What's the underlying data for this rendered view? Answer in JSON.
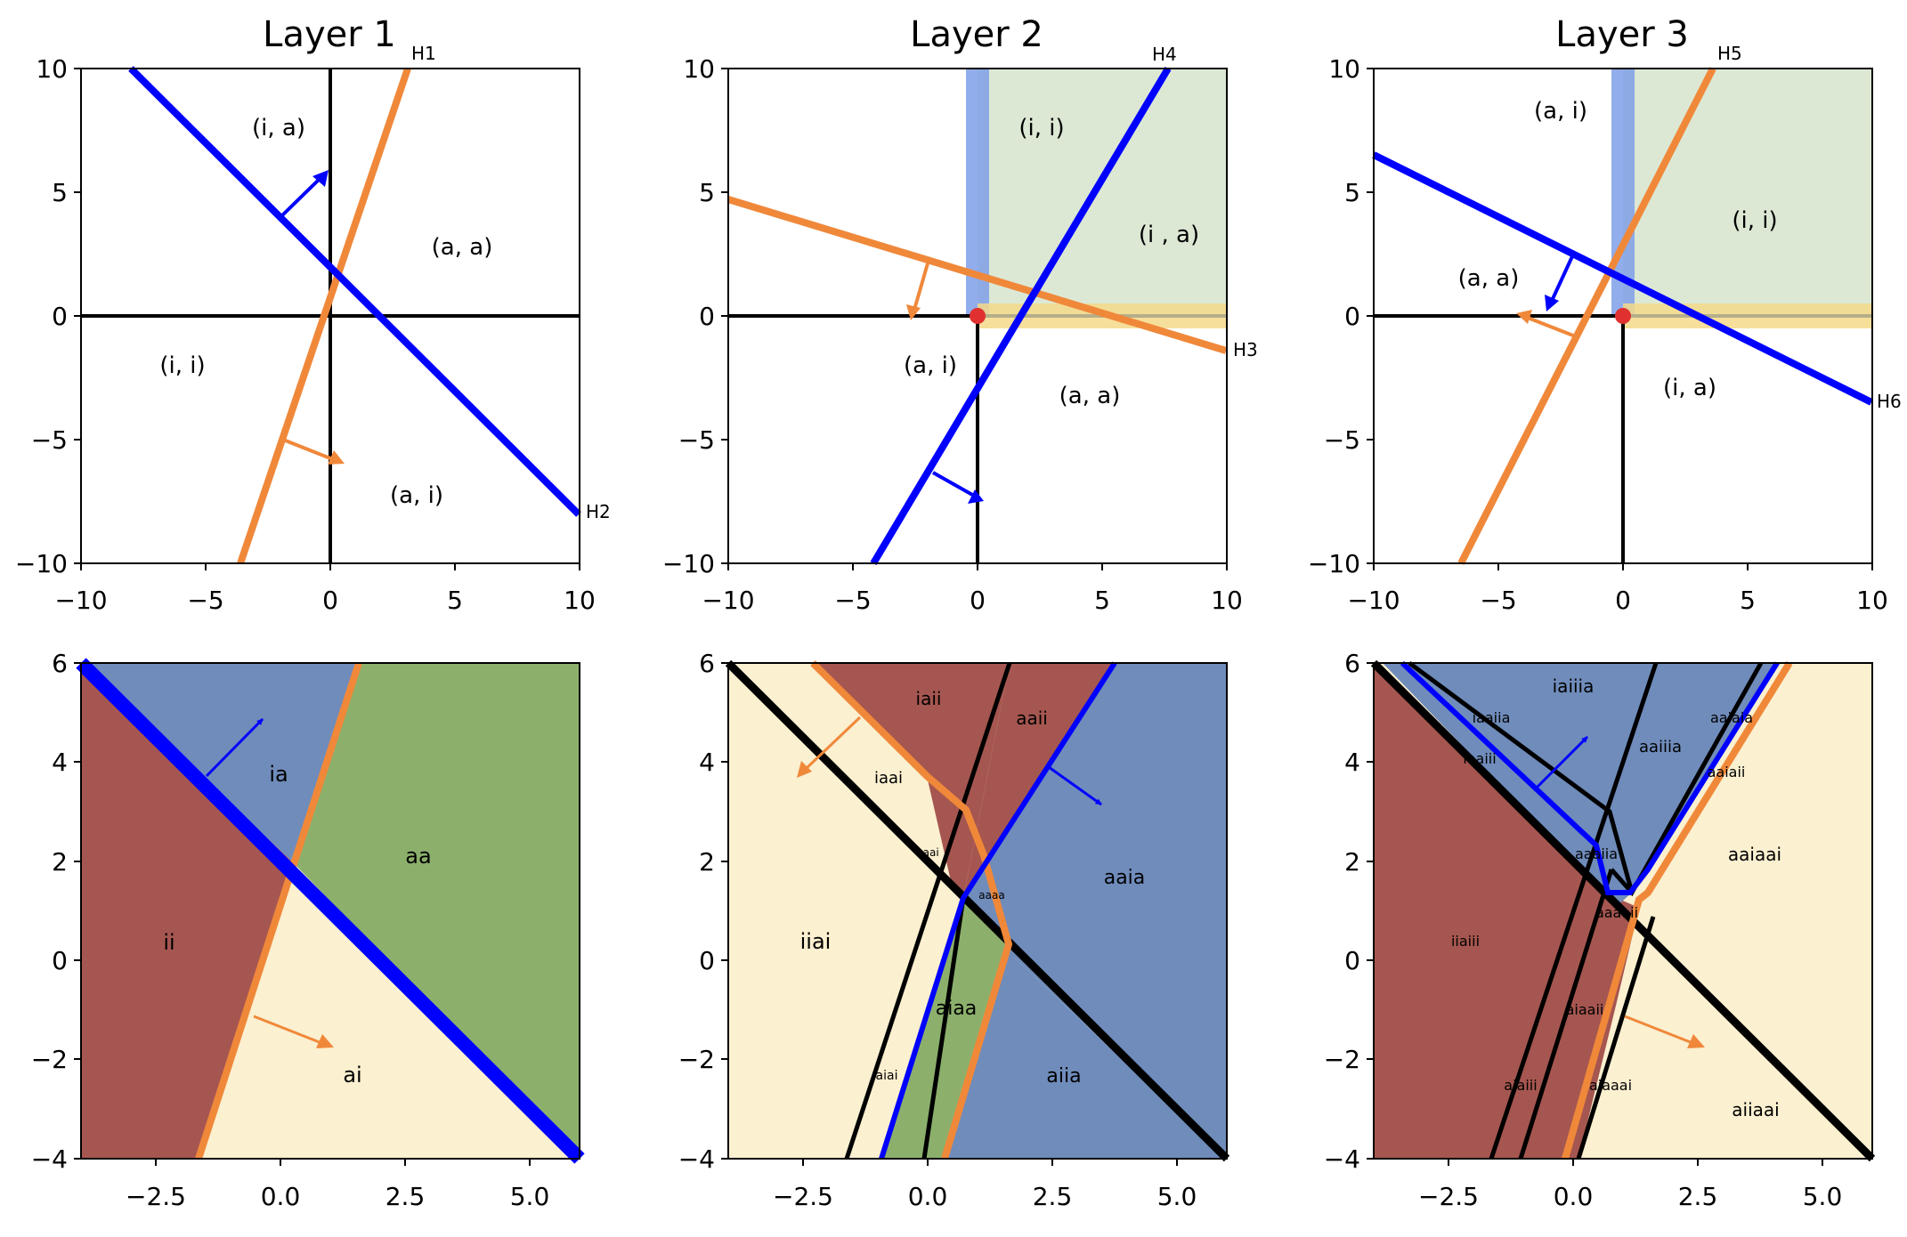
{
  "colors": {
    "blue": "#0000ff",
    "orange": "#f0883a",
    "red_region": "#a65650",
    "blue_region": "#6f8cbb",
    "green_region": "#8cb06c",
    "cream_region": "#fbf0d0",
    "green_fill": "#dce8d4",
    "vband": "#7f9fe8",
    "hband": "#f5d98a",
    "point": "#e03030"
  },
  "chart_data": [
    {
      "type": "line",
      "title": "Layer 1",
      "xlim": [
        -10,
        10
      ],
      "ylim": [
        -10,
        10
      ],
      "xticks": [
        -10,
        -5,
        0,
        5,
        10
      ],
      "yticks": [
        -10,
        -5,
        0,
        5,
        10
      ],
      "lines": [
        {
          "label": "H1",
          "color": "orange",
          "points": [
            [
              -3.7,
              -10
            ],
            [
              3.1,
              10
            ]
          ],
          "arrow": [
            [
              -1.9,
              -5
            ],
            [
              0.4,
              -5.9
            ]
          ]
        },
        {
          "label": "H2",
          "color": "blue",
          "points": [
            [
              -8,
              10
            ],
            [
              10,
              -8
            ]
          ],
          "arrow": [
            [
              -2,
              4
            ],
            [
              -0.1,
              5.9
            ]
          ]
        }
      ],
      "region_labels": [
        {
          "text": "(i, a)",
          "x": -2.1,
          "y": 7.5
        },
        {
          "text": "(a, a)",
          "x": 5.3,
          "y": 2.7
        },
        {
          "text": "(i, i)",
          "x": -6,
          "y": -2
        },
        {
          "text": "(a, i)",
          "x": 3.5,
          "y": -7.3
        }
      ]
    },
    {
      "type": "line",
      "title": "Layer 2",
      "xlim": [
        -10,
        10
      ],
      "ylim": [
        -10,
        10
      ],
      "xticks": [
        -10,
        -5,
        0,
        5,
        10
      ],
      "yticks": [
        -10,
        -5,
        0,
        5,
        10
      ],
      "lines": [
        {
          "label": "H3",
          "color": "orange",
          "points": [
            [
              -10,
              4.7
            ],
            [
              10,
              -1.4
            ]
          ],
          "arrow": [
            [
              -2,
              2.1
            ],
            [
              -2.7,
              -0.2
            ]
          ]
        },
        {
          "label": "H4",
          "color": "blue",
          "points": [
            [
              -4.2,
              -10
            ],
            [
              7.6,
              10
            ]
          ],
          "arrow": [
            [
              -1.8,
              -6.3
            ],
            [
              0.3,
              -7.5
            ]
          ]
        }
      ],
      "region_labels": [
        {
          "text": "(i, i)",
          "x": 2.6,
          "y": 7.5
        },
        {
          "text": "(i , a)",
          "x": 7.7,
          "y": 3.2
        },
        {
          "text": "(a, i)",
          "x": -1.9,
          "y": -2
        },
        {
          "text": "(a, a)",
          "x": 4.5,
          "y": -3.2
        }
      ]
    },
    {
      "type": "line",
      "title": "Layer 3",
      "xlim": [
        -10,
        10
      ],
      "ylim": [
        -10,
        10
      ],
      "xticks": [
        -10,
        -5,
        0,
        5,
        10
      ],
      "yticks": [
        -10,
        -5,
        0,
        5,
        10
      ],
      "lines": [
        {
          "label": "H5",
          "color": "orange",
          "points": [
            [
              -6.5,
              -10
            ],
            [
              3.6,
              10
            ]
          ],
          "arrow": [
            [
              -2,
              -0.8
            ],
            [
              -4.3,
              0.1
            ]
          ]
        },
        {
          "label": "H6",
          "color": "blue",
          "points": [
            [
              -10,
              6.5
            ],
            [
              10,
              -3.5
            ]
          ],
          "arrow": [
            [
              -2,
              2.5
            ],
            [
              -3.1,
              0.2
            ]
          ]
        }
      ],
      "region_labels": [
        {
          "text": "(a, i)",
          "x": -2.5,
          "y": 8.3
        },
        {
          "text": "(i, i)",
          "x": 5.3,
          "y": 3.8
        },
        {
          "text": "(a, a)",
          "x": -5.4,
          "y": 1.5
        },
        {
          "text": "(i, a)",
          "x": 2.7,
          "y": -2.8
        }
      ]
    },
    {
      "type": "area",
      "xlim": [
        -4,
        6
      ],
      "ylim": [
        -4,
        6
      ],
      "xticks": [
        -2.5,
        0.0,
        2.5,
        5.0
      ],
      "yticks": [
        -4,
        -2,
        0,
        2,
        4,
        6
      ],
      "region_labels": [
        {
          "text": "ia",
          "x": -0.05,
          "y": 3.8
        },
        {
          "text": "aa",
          "x": 2.8,
          "y": 2.1
        },
        {
          "text": "ii",
          "x": -2.2,
          "y": 0.3
        },
        {
          "text": "ai",
          "x": 1.45,
          "y": -2.3
        }
      ]
    },
    {
      "type": "area",
      "xlim": [
        -4,
        6
      ],
      "ylim": [
        -4,
        6
      ],
      "xticks": [
        -2.5,
        0.0,
        2.5,
        5.0
      ],
      "yticks": [
        -4,
        -2,
        0,
        2,
        4,
        6
      ],
      "region_labels": [
        {
          "text": "iaii",
          "x": 0,
          "y": 5.2
        },
        {
          "text": "aaii",
          "x": 2.1,
          "y": 4.8
        },
        {
          "text": "iaai",
          "x": -0.8,
          "y": 3.6
        },
        {
          "text": "aaai",
          "x": 0.75,
          "y": 2.15
        },
        {
          "text": "aaaa",
          "x": 1.3,
          "y": 1.3
        },
        {
          "text": "aaia",
          "x": 3.9,
          "y": 1.6
        },
        {
          "text": "iiai",
          "x": -2.2,
          "y": 0.3
        },
        {
          "text": "aiaa",
          "x": 0.55,
          "y": -1
        },
        {
          "text": "aiai",
          "x": -0.9,
          "y": -2.3
        },
        {
          "text": "aiia",
          "x": 2.75,
          "y": -2.3
        }
      ]
    },
    {
      "type": "area",
      "xlim": [
        -4,
        6
      ],
      "ylim": [
        -4,
        6
      ],
      "xticks": [
        -2.5,
        0.0,
        2.5,
        5.0
      ],
      "yticks": [
        -4,
        -2,
        0,
        2,
        4,
        6
      ],
      "region_labels": [
        {
          "text": "iaiiia",
          "x": 0,
          "y": 5.5
        },
        {
          "text": "iaaiia",
          "x": -1.75,
          "y": 4.85
        },
        {
          "text": "iaaiii",
          "x": -2,
          "y": 4.05
        },
        {
          "text": "aaiiia",
          "x": 1.75,
          "y": 4.35
        },
        {
          "text": "aaiaia",
          "x": 3.2,
          "y": 4.85
        },
        {
          "text": "aaiaii",
          "x": 3.1,
          "y": 3.95
        },
        {
          "text": "aaaiia",
          "x": 0.55,
          "y": 2.15
        },
        {
          "text": "aaiaai",
          "x": 3.5,
          "y": 2.1
        },
        {
          "text": "aaaaii",
          "x": 1.0,
          "y": 0.95
        },
        {
          "text": "iiaiii",
          "x": -2.1,
          "y": 0.35
        },
        {
          "text": "aiaaii",
          "x": 0.5,
          "y": -1
        },
        {
          "text": "aiaiii",
          "x": -1.05,
          "y": -2.5
        },
        {
          "text": "aiaaai",
          "x": 1.45,
          "y": -2.5
        },
        {
          "text": "aiiaai",
          "x": 3.4,
          "y": -3
        }
      ]
    }
  ]
}
